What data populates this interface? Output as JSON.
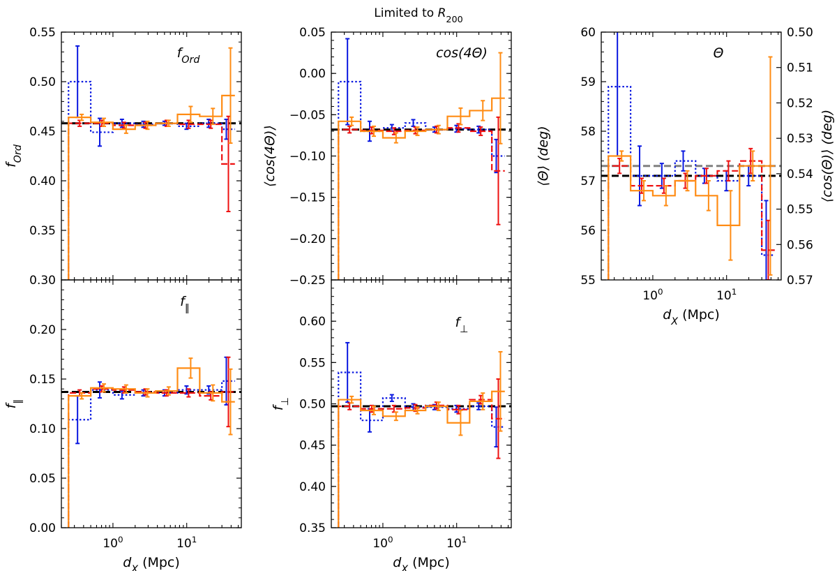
{
  "figure_title": "Limited to R200",
  "colors": {
    "blue": "#0a18e0",
    "red": "#ee1111",
    "orange": "#ff8c14",
    "black": "#000000",
    "gray": "#808080"
  },
  "chart_data": [
    {
      "id": "f_ord",
      "type": "step",
      "xscale": "log",
      "xlim": [
        0.2,
        55
      ],
      "ylim": [
        0.3,
        0.55
      ],
      "ylabel": "f_Ord",
      "xlabel": "",
      "annotation": "f_Ord",
      "yticks": [
        0.3,
        0.35,
        0.4,
        0.45,
        0.5,
        0.55
      ],
      "ytick_labels": [
        "0.30",
        "0.35",
        "0.40",
        "0.45",
        "0.50",
        "0.55"
      ],
      "xticks": [],
      "xtick_labels": [],
      "reference_lines": [
        {
          "color": "black",
          "y": 0.458
        }
      ],
      "series": [
        {
          "name": "blue",
          "style": "dotted",
          "edges": [
            0.25,
            0.5,
            1.0,
            2.0,
            3.8,
            7.5,
            15,
            30,
            45
          ],
          "values": [
            0.5,
            0.449,
            0.458,
            0.457,
            0.458,
            0.455,
            0.458,
            0.452
          ],
          "errors": [
            0.036,
            0.014,
            0.004,
            0.003,
            0.002,
            0.003,
            0.004,
            0.01
          ]
        },
        {
          "name": "red",
          "style": "dashed",
          "edges": [
            0.25,
            0.5,
            1.0,
            2.0,
            3.8,
            7.5,
            15,
            30,
            45
          ],
          "values": [
            0.458,
            0.458,
            0.456,
            0.456,
            0.458,
            0.457,
            0.457,
            0.417
          ],
          "errors": [
            0.003,
            0.003,
            0.003,
            0.003,
            0.003,
            0.004,
            0.004,
            0.048
          ]
        },
        {
          "name": "orange",
          "style": "solid",
          "edges": [
            0.25,
            0.5,
            1.0,
            2.0,
            3.8,
            7.5,
            15,
            30,
            45
          ],
          "values": [
            0.464,
            0.459,
            0.452,
            0.456,
            0.458,
            0.467,
            0.465,
            0.486
          ],
          "errors": [
            0.003,
            0.004,
            0.004,
            0.004,
            0.003,
            0.008,
            0.008,
            0.048
          ]
        }
      ]
    },
    {
      "id": "cos4theta",
      "type": "step",
      "xscale": "log",
      "xlim": [
        0.2,
        55
      ],
      "ylim": [
        -0.25,
        0.05
      ],
      "ylabel": "⟨cos(4Θ)⟩",
      "xlabel": "",
      "annotation": "cos(4Θ)",
      "yticks": [
        -0.25,
        -0.2,
        -0.15,
        -0.1,
        -0.05,
        0.0,
        0.05
      ],
      "ytick_labels": [
        "−0.25",
        "−0.20",
        "−0.15",
        "−0.10",
        "−0.05",
        "0.00",
        "0.05"
      ],
      "xticks": [],
      "xtick_labels": [],
      "reference_lines": [
        {
          "color": "black",
          "y": -0.068
        }
      ],
      "series": [
        {
          "name": "blue",
          "style": "dotted",
          "edges": [
            0.25,
            0.5,
            1.0,
            2.0,
            3.8,
            7.5,
            15,
            30,
            45
          ],
          "values": [
            -0.01,
            -0.07,
            -0.066,
            -0.06,
            -0.068,
            -0.067,
            -0.068,
            -0.1
          ],
          "errors": [
            0.052,
            0.012,
            0.004,
            0.004,
            0.003,
            0.004,
            0.004,
            0.02
          ]
        },
        {
          "name": "red",
          "style": "dashed",
          "edges": [
            0.25,
            0.5,
            1.0,
            2.0,
            3.8,
            7.5,
            15,
            30,
            45
          ],
          "values": [
            -0.068,
            -0.069,
            -0.07,
            -0.069,
            -0.068,
            -0.066,
            -0.07,
            -0.118
          ],
          "errors": [
            0.004,
            0.004,
            0.004,
            0.004,
            0.004,
            0.005,
            0.005,
            0.065
          ]
        },
        {
          "name": "orange",
          "style": "solid",
          "edges": [
            0.25,
            0.5,
            1.0,
            2.0,
            3.8,
            7.5,
            15,
            30,
            45
          ],
          "values": [
            -0.058,
            -0.07,
            -0.078,
            -0.07,
            -0.068,
            -0.052,
            -0.045,
            -0.03
          ],
          "errors": [
            0.005,
            0.006,
            0.006,
            0.005,
            0.005,
            0.01,
            0.012,
            0.055
          ]
        }
      ]
    },
    {
      "id": "theta",
      "type": "step",
      "xscale": "log",
      "xlim": [
        0.2,
        55
      ],
      "ylim": [
        55,
        60
      ],
      "ylabel": "⟨Θ⟩ (deg)",
      "xlabel": "d_X (Mpc)",
      "annotation": "Θ",
      "yticks": [
        55,
        56,
        57,
        58,
        59,
        60
      ],
      "ytick_labels": [
        "55",
        "56",
        "57",
        "58",
        "59",
        "60"
      ],
      "xticks": [
        1,
        10
      ],
      "xtick_labels": [
        "10^0",
        "10^1"
      ],
      "right_axis": {
        "ylabel": "⟨cos(Θ)⟩ (deg)",
        "ticks": [
          "0.50",
          "0.51",
          "0.52",
          "0.53",
          "0.54",
          "0.55",
          "0.56",
          "0.57"
        ]
      },
      "reference_lines": [
        {
          "color": "gray",
          "y": 57.3
        },
        {
          "color": "black",
          "y": 57.1
        }
      ],
      "series": [
        {
          "name": "blue",
          "style": "dotted",
          "edges": [
            0.25,
            0.5,
            1.0,
            2.0,
            3.8,
            7.5,
            15,
            30,
            45
          ],
          "values": [
            58.9,
            57.1,
            57.1,
            57.4,
            57.1,
            57.0,
            57.1,
            55.5
          ],
          "errors": [
            1.4,
            0.6,
            0.25,
            0.2,
            0.15,
            0.2,
            0.2,
            1.1
          ]
        },
        {
          "name": "red",
          "style": "dashed",
          "edges": [
            0.25,
            0.5,
            1.0,
            2.0,
            3.8,
            7.5,
            15,
            30,
            45
          ],
          "values": [
            57.3,
            56.9,
            56.9,
            57.0,
            57.1,
            57.2,
            57.4,
            55.6
          ],
          "errors": [
            0.15,
            0.15,
            0.15,
            0.15,
            0.15,
            0.2,
            0.25,
            0.6
          ]
        },
        {
          "name": "orange",
          "style": "solid",
          "edges": [
            0.25,
            0.5,
            1.0,
            2.0,
            3.8,
            7.5,
            15,
            30,
            45
          ],
          "values": [
            57.5,
            56.8,
            56.7,
            57.0,
            56.7,
            56.1,
            57.3,
            57.3
          ],
          "errors": [
            0.1,
            0.2,
            0.2,
            0.2,
            0.3,
            0.7,
            0.3,
            2.2
          ]
        }
      ]
    },
    {
      "id": "f_par",
      "type": "step",
      "xscale": "log",
      "xlim": [
        0.2,
        55
      ],
      "ylim": [
        0.0,
        0.25
      ],
      "ylabel": "f_∥",
      "xlabel": "d_X (Mpc)",
      "annotation": "f_∥",
      "yticks": [
        0.0,
        0.05,
        0.1,
        0.15,
        0.2
      ],
      "ytick_labels": [
        "0.00",
        "0.05",
        "0.10",
        "0.15",
        "0.20"
      ],
      "xticks": [
        1,
        10
      ],
      "xtick_labels": [
        "10^0",
        "10^1"
      ],
      "reference_lines": [
        {
          "color": "black",
          "y": 0.137
        }
      ],
      "series": [
        {
          "name": "blue",
          "style": "dotted",
          "edges": [
            0.25,
            0.5,
            1.0,
            2.0,
            3.8,
            7.5,
            15,
            30,
            45
          ],
          "values": [
            0.109,
            0.139,
            0.134,
            0.136,
            0.136,
            0.139,
            0.139,
            0.148
          ],
          "errors": [
            0.024,
            0.008,
            0.004,
            0.003,
            0.003,
            0.004,
            0.004,
            0.024
          ]
        },
        {
          "name": "red",
          "style": "dashed",
          "edges": [
            0.25,
            0.5,
            1.0,
            2.0,
            3.8,
            7.5,
            15,
            30,
            45
          ],
          "values": [
            0.136,
            0.14,
            0.139,
            0.137,
            0.136,
            0.136,
            0.133,
            0.137
          ],
          "errors": [
            0.003,
            0.003,
            0.003,
            0.003,
            0.003,
            0.004,
            0.004,
            0.035
          ]
        },
        {
          "name": "orange",
          "style": "solid",
          "edges": [
            0.25,
            0.5,
            1.0,
            2.0,
            3.8,
            7.5,
            15,
            30,
            45
          ],
          "values": [
            0.133,
            0.141,
            0.14,
            0.136,
            0.138,
            0.161,
            0.136,
            0.127
          ],
          "errors": [
            0.003,
            0.004,
            0.004,
            0.004,
            0.004,
            0.01,
            0.008,
            0.033
          ]
        }
      ]
    },
    {
      "id": "f_perp",
      "type": "step",
      "xscale": "log",
      "xlim": [
        0.2,
        55
      ],
      "ylim": [
        0.35,
        0.65
      ],
      "ylabel": "f_⊥",
      "xlabel": "d_X (Mpc)",
      "annotation": "f_⊥",
      "yticks": [
        0.35,
        0.4,
        0.45,
        0.5,
        0.55,
        0.6
      ],
      "ytick_labels": [
        "0.35",
        "0.40",
        "0.45",
        "0.50",
        "0.55",
        "0.60"
      ],
      "xticks": [
        1,
        10
      ],
      "xtick_labels": [
        "10^0",
        "10^1"
      ],
      "reference_lines": [
        {
          "color": "black",
          "y": 0.497
        }
      ],
      "series": [
        {
          "name": "blue",
          "style": "dotted",
          "edges": [
            0.25,
            0.5,
            1.0,
            2.0,
            3.8,
            7.5,
            15,
            30,
            45
          ],
          "values": [
            0.538,
            0.48,
            0.507,
            0.496,
            0.496,
            0.494,
            0.497,
            0.472
          ],
          "errors": [
            0.036,
            0.014,
            0.004,
            0.004,
            0.003,
            0.004,
            0.004,
            0.024
          ]
        },
        {
          "name": "red",
          "style": "dashed",
          "edges": [
            0.25,
            0.5,
            1.0,
            2.0,
            3.8,
            7.5,
            15,
            30,
            45
          ],
          "values": [
            0.497,
            0.494,
            0.494,
            0.495,
            0.498,
            0.493,
            0.505,
            0.482
          ],
          "errors": [
            0.004,
            0.004,
            0.004,
            0.004,
            0.004,
            0.005,
            0.005,
            0.048
          ]
        },
        {
          "name": "orange",
          "style": "solid",
          "edges": [
            0.25,
            0.5,
            1.0,
            2.0,
            3.8,
            7.5,
            15,
            30,
            45
          ],
          "values": [
            0.505,
            0.492,
            0.485,
            0.492,
            0.497,
            0.477,
            0.503,
            0.515
          ],
          "errors": [
            0.004,
            0.005,
            0.005,
            0.004,
            0.005,
            0.015,
            0.01,
            0.048
          ]
        }
      ]
    }
  ]
}
